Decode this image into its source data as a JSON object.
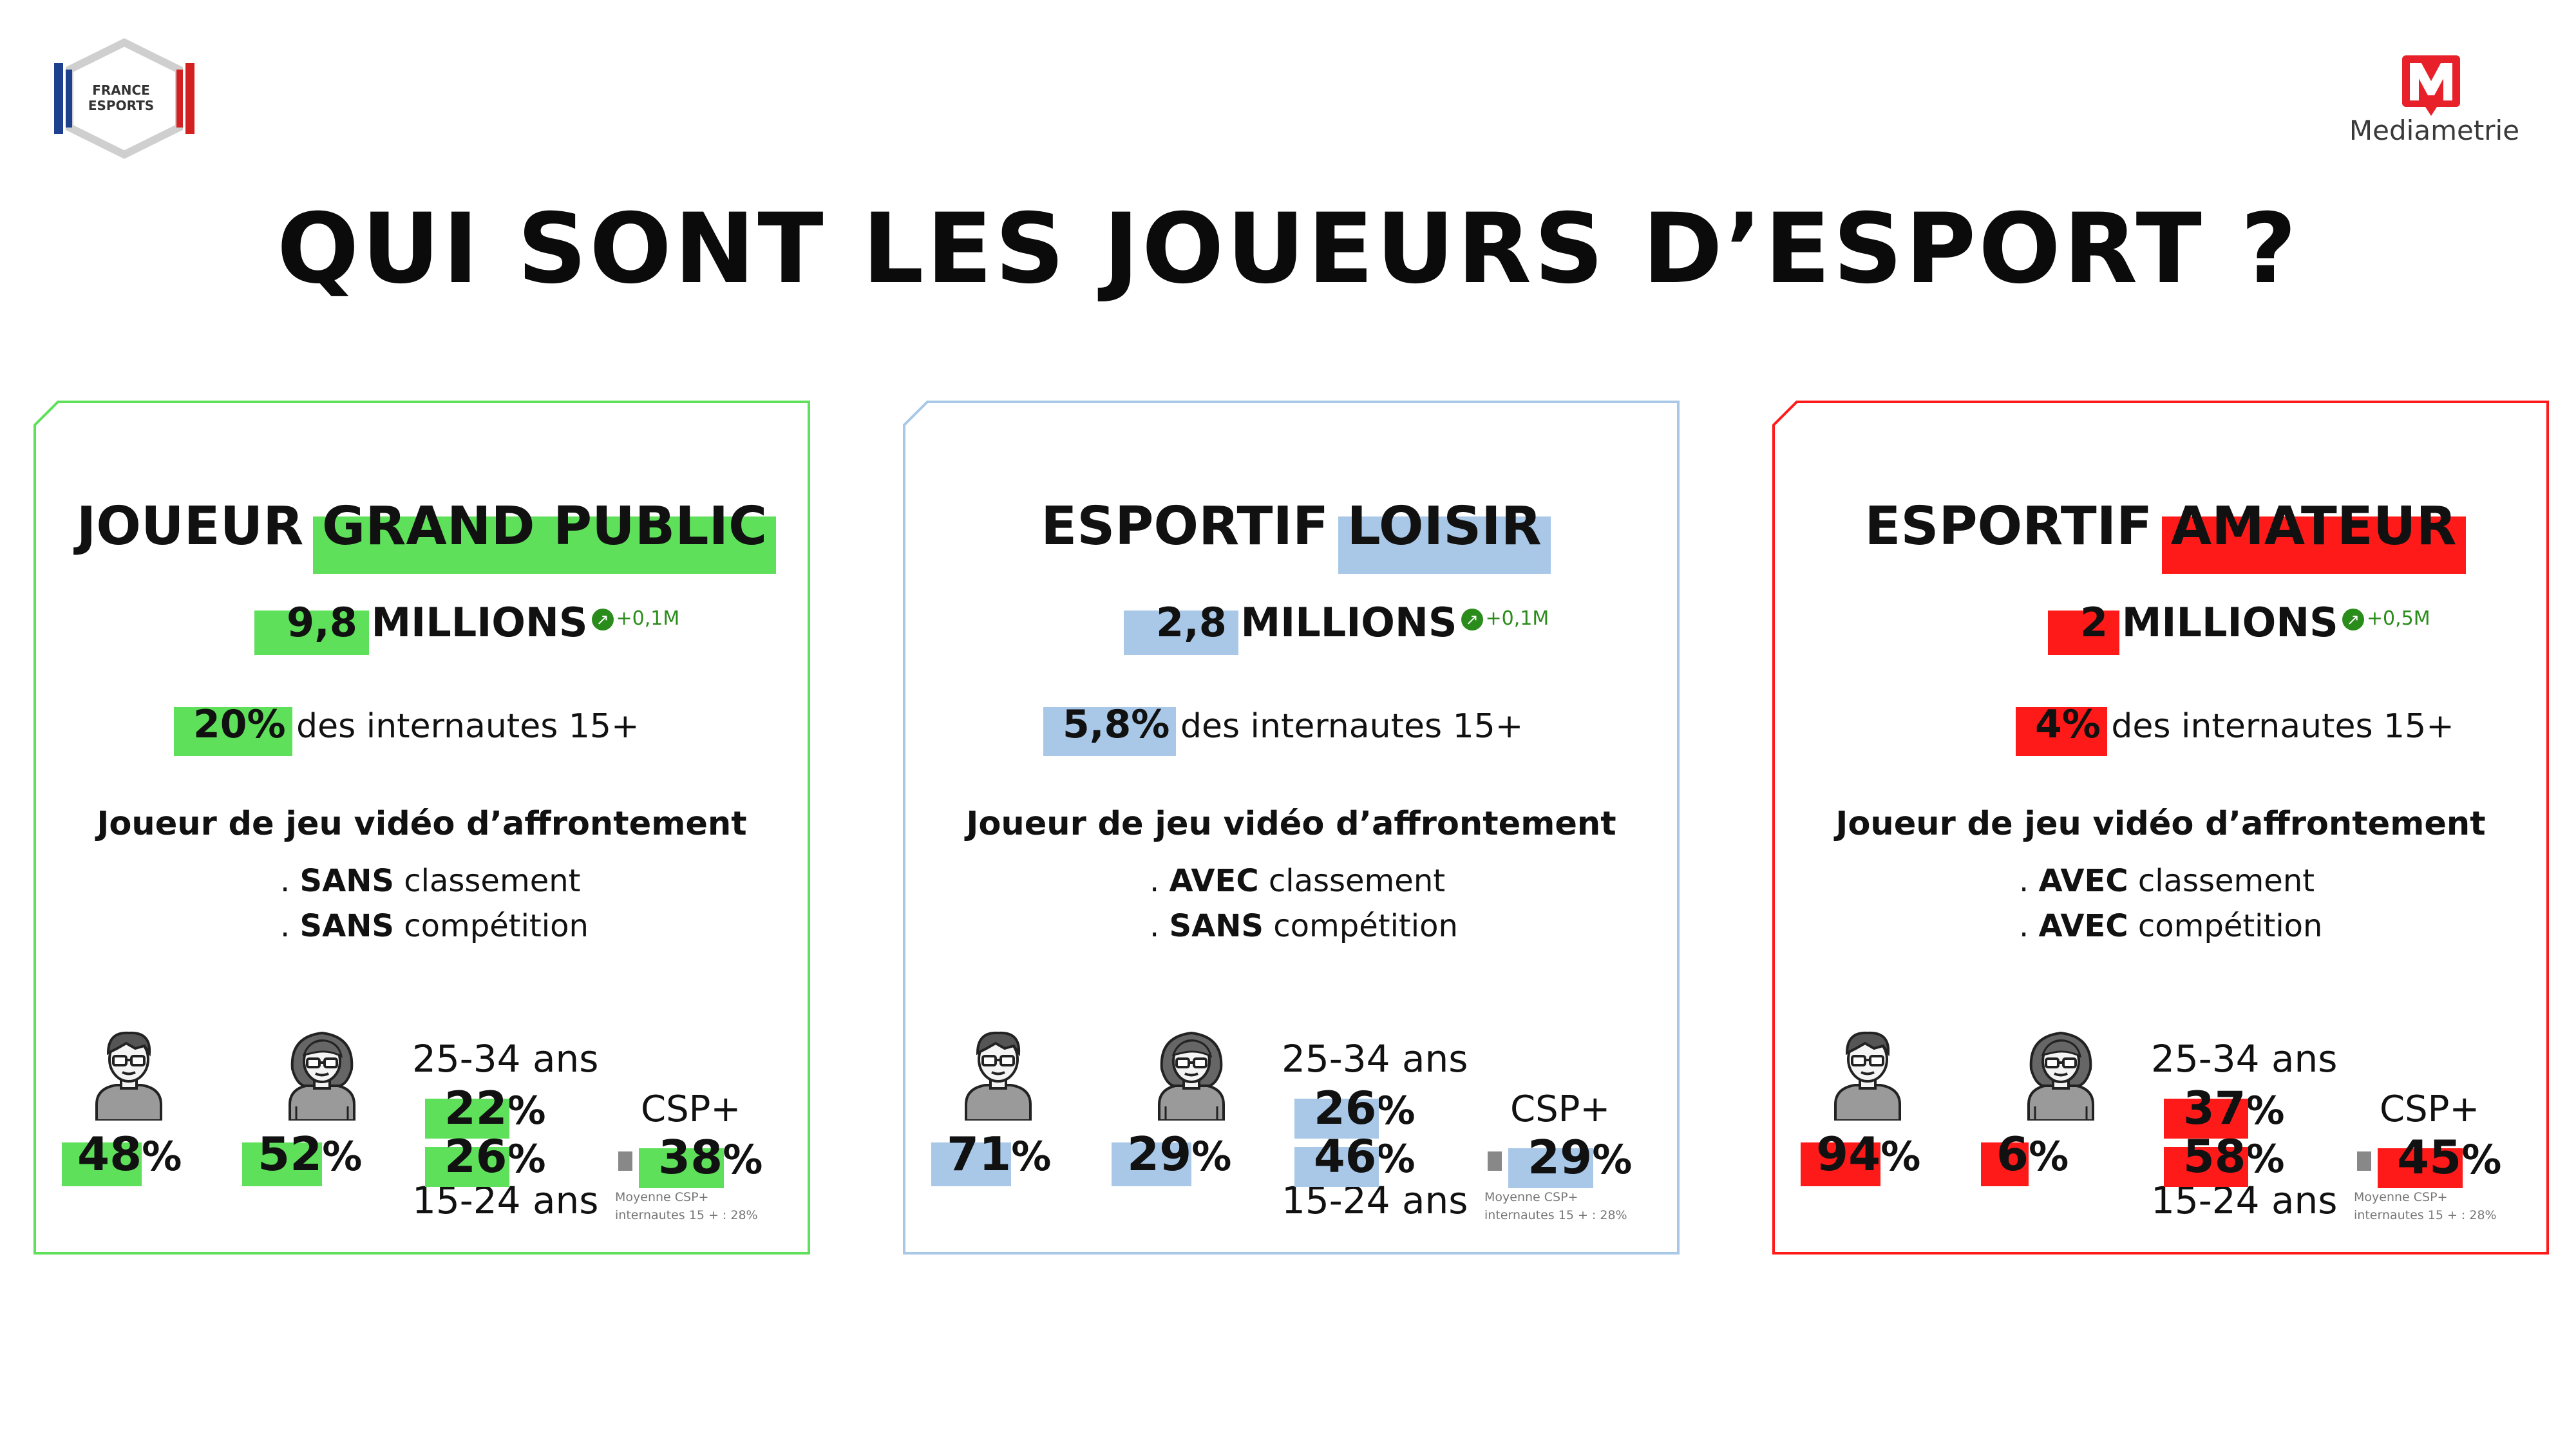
{
  "logos": {
    "france_esports": {
      "line1": "FRANCE",
      "line2": "ESPORTS",
      "icon": "france-esports-hexagon-logo"
    },
    "mediametrie": {
      "name": "Mediametrie",
      "icon": "mediametrie-m-logo"
    }
  },
  "title": "QUI SONT LES JOUEURS D’ESPORT ?",
  "colors": {
    "green": "#5fe05a",
    "blue": "#a9c8e8",
    "red": "#ff1a1a",
    "delta_green": "#2a8c1a",
    "grey": "#888888"
  },
  "cards": [
    {
      "title_plain": "JOUEUR",
      "title_highlight": "GRAND PUBLIC",
      "accent": "#5fe05a",
      "count_value": "9,8",
      "count_unit": "MILLIONS",
      "delta": "+0,1M",
      "share_value": "20%",
      "share_text": "des internautes 15+",
      "description": "Joueur de jeu vidéo d’affrontement",
      "rule1_key": "SANS",
      "rule1_text": "classement",
      "rule2_key": "SANS",
      "rule2_text": "compétition",
      "male_pct": "48",
      "female_pct": "52",
      "age_label_top": "25-34 ans",
      "age_25_34": "22",
      "age_15_24": "26",
      "age_label_bottom": "15-24 ans",
      "csp_label": "CSP+",
      "csp_value": "38",
      "csp_note_1": "Moyenne CSP+",
      "csp_note_2": "internautes 15 + : 28%",
      "pct_sign": "%"
    },
    {
      "title_plain": "ESPORTIF",
      "title_highlight": "LOISIR",
      "accent": "#a9c8e8",
      "count_value": "2,8",
      "count_unit": "MILLIONS",
      "delta": "+0,1M",
      "share_value": "5,8%",
      "share_text": "des internautes 15+",
      "description": "Joueur de jeu vidéo d’affrontement",
      "rule1_key": "AVEC",
      "rule1_text": "classement",
      "rule2_key": "SANS",
      "rule2_text": "compétition",
      "male_pct": "71",
      "female_pct": "29",
      "age_label_top": "25-34 ans",
      "age_25_34": "26",
      "age_15_24": "46",
      "age_label_bottom": "15-24 ans",
      "csp_label": "CSP+",
      "csp_value": "29",
      "csp_note_1": "Moyenne CSP+",
      "csp_note_2": "internautes 15 + : 28%",
      "pct_sign": "%"
    },
    {
      "title_plain": "ESPORTIF",
      "title_highlight": "AMATEUR",
      "accent": "#ff1a1a",
      "count_value": "2",
      "count_unit": "MILLIONS",
      "delta": "+0,5M",
      "share_value": "4%",
      "share_text": "des internautes 15+",
      "description": "Joueur de jeu vidéo d’affrontement",
      "rule1_key": "AVEC",
      "rule1_text": "classement",
      "rule2_key": "AVEC",
      "rule2_text": "compétition",
      "male_pct": "94",
      "female_pct": "6",
      "age_label_top": "25-34 ans",
      "age_25_34": "37",
      "age_15_24": "58",
      "age_label_bottom": "15-24 ans",
      "csp_label": "CSP+",
      "csp_value": "45",
      "csp_note_1": "Moyenne CSP+",
      "csp_note_2": "internautes 15 + : 28%",
      "pct_sign": "%"
    }
  ]
}
